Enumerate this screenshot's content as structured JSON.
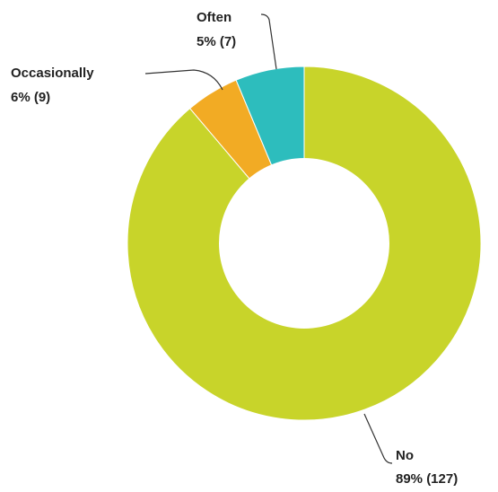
{
  "chart_data": {
    "type": "pie",
    "subtype": "donut",
    "slices": [
      {
        "label": "No",
        "value": 127,
        "percent_text": "89% (127)",
        "color": "#c8d42a"
      },
      {
        "label": "Often",
        "value": 7,
        "percent_text": "5% (7)",
        "color": "#f2ab24"
      },
      {
        "label": "Occasionally",
        "value": 9,
        "percent_text": "6% (9)",
        "color": "#2dbdbd"
      }
    ],
    "start": "top",
    "direction": "clockwise",
    "legend": "none"
  }
}
